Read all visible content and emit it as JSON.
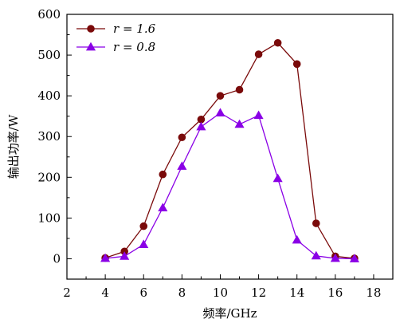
{
  "chart_data": {
    "type": "line",
    "xlabel": "频率/GHz",
    "ylabel": "输出功率/W",
    "xlim": [
      2,
      19
    ],
    "ylim": [
      -50,
      600
    ],
    "xticks": [
      2,
      4,
      6,
      8,
      10,
      12,
      14,
      16,
      18
    ],
    "yticks": [
      0,
      100,
      200,
      300,
      400,
      500,
      600
    ],
    "grid": false,
    "legend_position": "top-left",
    "series": [
      {
        "name": "r = 1.6",
        "color": "#7a0a0a",
        "marker": "circle",
        "x": [
          4,
          5,
          6,
          7,
          8,
          9,
          10,
          11,
          12,
          13,
          14,
          15,
          16,
          17
        ],
        "y": [
          2,
          18,
          80,
          207,
          298,
          342,
          400,
          415,
          502,
          530,
          478,
          87,
          6,
          1
        ]
      },
      {
        "name": "r = 0.8",
        "color": "#8a00e6",
        "marker": "triangle",
        "x": [
          4,
          5,
          6,
          7,
          8,
          9,
          10,
          11,
          12,
          13,
          14,
          15,
          16,
          17
        ],
        "y": [
          1,
          6,
          35,
          125,
          227,
          324,
          358,
          330,
          352,
          197,
          46,
          7,
          1,
          0
        ]
      }
    ]
  }
}
